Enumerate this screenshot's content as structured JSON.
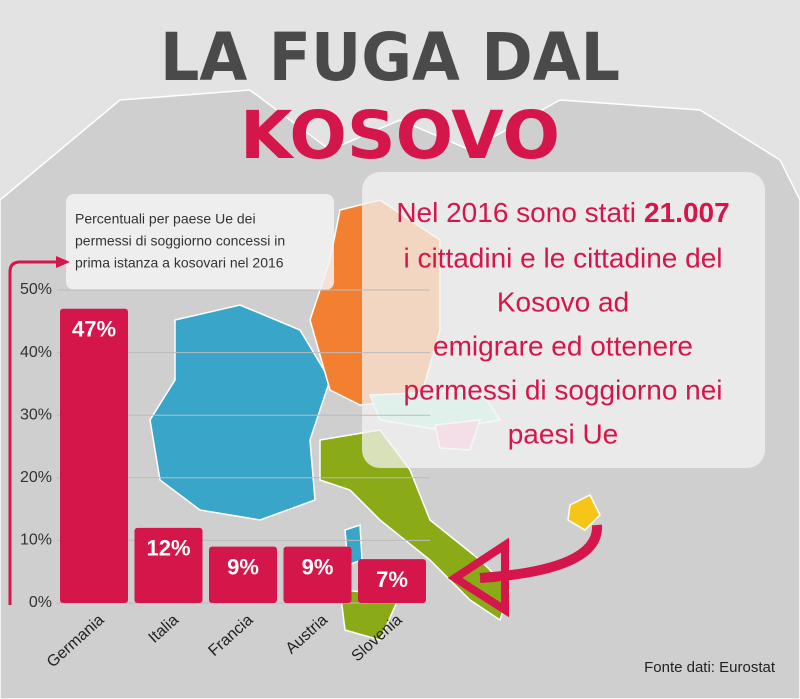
{
  "title": "LA FUGA DAL",
  "title_highlight": "KOSOVO",
  "note": [
    "Percentuali per paese Ue dei",
    "permessi di soggiorno concessi in",
    "prima istanza a kosovari nel 2016"
  ],
  "annotation": {
    "intro": "Nel 2016 sono stati",
    "number": "21.007",
    "lines": [
      "i cittadini e le cittadine del",
      "Kosovo ad",
      "emigrare ed ottenere",
      "permessi di soggiorno nei",
      "paesi Ue"
    ]
  },
  "source": "Fonte dati: Eurostat",
  "chart_data": {
    "type": "bar",
    "categories": [
      "Germania",
      "Italia",
      "Francia",
      "Austria",
      "Slovenia"
    ],
    "values": [
      47,
      12,
      9,
      9,
      7
    ],
    "value_labels": [
      "47%",
      "12%",
      "9%",
      "9%",
      "7%"
    ],
    "color": "#d4164a",
    "ylim": [
      0,
      50
    ],
    "yticks": [
      {
        "value": 0,
        "label": "0%"
      },
      {
        "value": 10,
        "label": "10%"
      },
      {
        "value": 20,
        "label": "20%"
      },
      {
        "value": 30,
        "label": "30%"
      },
      {
        "value": 40,
        "label": "40%"
      },
      {
        "value": 50,
        "label": "50%"
      }
    ],
    "grid": true
  }
}
